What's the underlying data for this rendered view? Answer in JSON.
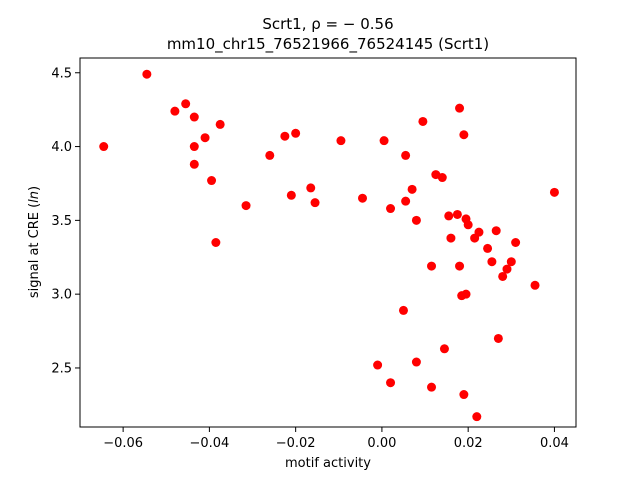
{
  "chart_data": {
    "type": "scatter",
    "title_line1": "Scrt1, ρ = − 0.56",
    "title_line2": "mm10_chr15_76521966_76524145 (Scrt1)",
    "xlabel": "motif activity",
    "ylabel": "signal at CRE (ln)",
    "xlim": [
      -0.07,
      0.045
    ],
    "ylim": [
      2.1,
      4.6
    ],
    "xticks": [
      -0.06,
      -0.04,
      -0.02,
      0.0,
      0.02,
      0.04
    ],
    "xtick_labels": [
      "−0.06",
      "−0.04",
      "−0.02",
      "0.00",
      "0.02",
      "0.04"
    ],
    "yticks": [
      2.5,
      3.0,
      3.5,
      4.0,
      4.5
    ],
    "ytick_labels": [
      "2.5",
      "3.0",
      "3.5",
      "4.0",
      "4.5"
    ],
    "grid": false,
    "marker_color": "#ff0000",
    "points": [
      {
        "x": -0.0645,
        "y": 4.0
      },
      {
        "x": -0.0545,
        "y": 4.49
      },
      {
        "x": -0.048,
        "y": 4.24
      },
      {
        "x": -0.0455,
        "y": 4.29
      },
      {
        "x": -0.0435,
        "y": 4.2
      },
      {
        "x": -0.0435,
        "y": 4.0
      },
      {
        "x": -0.0435,
        "y": 3.88
      },
      {
        "x": -0.041,
        "y": 4.06
      },
      {
        "x": -0.0395,
        "y": 3.77
      },
      {
        "x": -0.0385,
        "y": 3.35
      },
      {
        "x": -0.0375,
        "y": 4.15
      },
      {
        "x": -0.0315,
        "y": 3.6
      },
      {
        "x": -0.026,
        "y": 3.94
      },
      {
        "x": -0.0225,
        "y": 4.07
      },
      {
        "x": -0.021,
        "y": 3.67
      },
      {
        "x": -0.02,
        "y": 4.09
      },
      {
        "x": -0.0165,
        "y": 3.72
      },
      {
        "x": -0.0155,
        "y": 3.62
      },
      {
        "x": -0.0095,
        "y": 4.04
      },
      {
        "x": -0.0045,
        "y": 3.65
      },
      {
        "x": -0.001,
        "y": 2.52
      },
      {
        "x": 0.0005,
        "y": 4.04
      },
      {
        "x": 0.002,
        "y": 3.58
      },
      {
        "x": 0.002,
        "y": 2.4
      },
      {
        "x": 0.005,
        "y": 2.89
      },
      {
        "x": 0.0055,
        "y": 3.94
      },
      {
        "x": 0.0055,
        "y": 3.63
      },
      {
        "x": 0.007,
        "y": 3.71
      },
      {
        "x": 0.008,
        "y": 3.5
      },
      {
        "x": 0.008,
        "y": 2.54
      },
      {
        "x": 0.0095,
        "y": 4.17
      },
      {
        "x": 0.0115,
        "y": 3.19
      },
      {
        "x": 0.0115,
        "y": 2.37
      },
      {
        "x": 0.0125,
        "y": 3.81
      },
      {
        "x": 0.014,
        "y": 3.79
      },
      {
        "x": 0.0145,
        "y": 2.63
      },
      {
        "x": 0.0155,
        "y": 3.53
      },
      {
        "x": 0.016,
        "y": 3.38
      },
      {
        "x": 0.0175,
        "y": 3.54
      },
      {
        "x": 0.018,
        "y": 4.26
      },
      {
        "x": 0.018,
        "y": 3.19
      },
      {
        "x": 0.0185,
        "y": 2.99
      },
      {
        "x": 0.019,
        "y": 4.08
      },
      {
        "x": 0.019,
        "y": 2.32
      },
      {
        "x": 0.0195,
        "y": 3.51
      },
      {
        "x": 0.0195,
        "y": 3.0
      },
      {
        "x": 0.02,
        "y": 3.47
      },
      {
        "x": 0.0215,
        "y": 3.38
      },
      {
        "x": 0.022,
        "y": 2.17
      },
      {
        "x": 0.0225,
        "y": 3.42
      },
      {
        "x": 0.0245,
        "y": 3.31
      },
      {
        "x": 0.0255,
        "y": 3.22
      },
      {
        "x": 0.0265,
        "y": 3.43
      },
      {
        "x": 0.027,
        "y": 2.7
      },
      {
        "x": 0.028,
        "y": 3.12
      },
      {
        "x": 0.029,
        "y": 3.17
      },
      {
        "x": 0.03,
        "y": 3.22
      },
      {
        "x": 0.031,
        "y": 3.35
      },
      {
        "x": 0.0355,
        "y": 3.06
      },
      {
        "x": 0.04,
        "y": 3.69
      }
    ]
  }
}
